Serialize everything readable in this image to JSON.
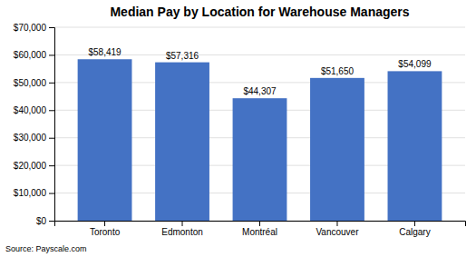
{
  "chart_data": {
    "type": "bar",
    "title": "Median Pay by Location for Warehouse Managers",
    "categories": [
      "Toronto",
      "Edmonton",
      "Montréal",
      "Vancouver",
      "Calgary"
    ],
    "values": [
      58419,
      57316,
      44307,
      51650,
      54099
    ],
    "value_labels": [
      "$58,419",
      "$57,316",
      "$44,307",
      "$51,650",
      "$54,099"
    ],
    "data_labels": true,
    "color": "#4472C4",
    "ylim": [
      0,
      70000
    ],
    "yticks": [
      {
        "value": 0,
        "label": "$0"
      },
      {
        "value": 10000,
        "label": "$10,000"
      },
      {
        "value": 20000,
        "label": "$20,000"
      },
      {
        "value": 30000,
        "label": "$30,000"
      },
      {
        "value": 40000,
        "label": "$40,000"
      },
      {
        "value": 50000,
        "label": "$50,000"
      },
      {
        "value": 60000,
        "label": "$60,000"
      },
      {
        "value": 70000,
        "label": "$70,000"
      }
    ],
    "grid": true,
    "annotations": [
      "Source: Payscale.com"
    ]
  }
}
